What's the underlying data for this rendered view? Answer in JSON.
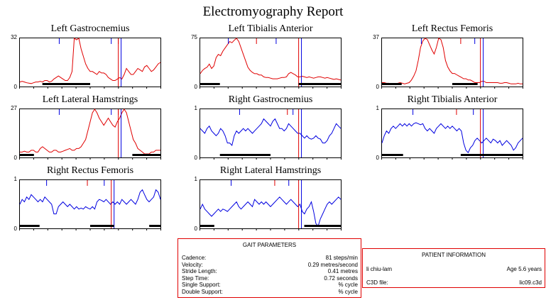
{
  "report_title": "Electromyography Report",
  "chart_data": [
    {
      "type": "line",
      "title": "Left Gastrocnemius",
      "ymax_label": "32",
      "ymin_label": "0",
      "color": "#e00000",
      "values": [
        3,
        3.5,
        3,
        2.5,
        2.2,
        2,
        2.5,
        3,
        3,
        3.5,
        3,
        4,
        4,
        3,
        3.5,
        5,
        6,
        7,
        6,
        5,
        4,
        4,
        6,
        10,
        32,
        31,
        32,
        25,
        20,
        15,
        12,
        10,
        10,
        9,
        8,
        10,
        9,
        9,
        8,
        6,
        5,
        4,
        4,
        5,
        6,
        5,
        8,
        12,
        10,
        8,
        8,
        10,
        12,
        11,
        10,
        13,
        14,
        12,
        10,
        11,
        13,
        15,
        16
      ],
      "markers": [
        {
          "color": "#0000e0",
          "pos": 0.28,
          "type": "tick"
        },
        {
          "color": "#0000e0",
          "pos": 0.65,
          "type": "tick"
        },
        {
          "color": "#e00000",
          "pos": 0.7,
          "type": "tick"
        },
        {
          "color": "#e00000",
          "pos": 0.7,
          "type": "full"
        },
        {
          "color": "#0000e0",
          "pos": 0.72,
          "type": "full"
        }
      ],
      "bars": [
        [
          0.16,
          0.5
        ]
      ]
    },
    {
      "type": "line",
      "title": "Left Tibialis Anterior",
      "ymax_label": "75",
      "ymin_label": "0",
      "color": "#e00000",
      "values": [
        20,
        25,
        28,
        30,
        35,
        28,
        32,
        45,
        50,
        48,
        55,
        60,
        65,
        70,
        68,
        72,
        75,
        70,
        60,
        50,
        40,
        30,
        25,
        22,
        20,
        20,
        18,
        18,
        15,
        14,
        14,
        13,
        12,
        12,
        12,
        13,
        14,
        14,
        15,
        20,
        22,
        20,
        18,
        15,
        15,
        16,
        15,
        14,
        15,
        14,
        13,
        14,
        15,
        15,
        14,
        13,
        14,
        13,
        12,
        11,
        12,
        11,
        10
      ],
      "markers": [
        {
          "color": "#0000e0",
          "pos": 0.2,
          "type": "tick"
        },
        {
          "color": "#e00000",
          "pos": 0.4,
          "type": "tick"
        },
        {
          "color": "#0000e0",
          "pos": 0.54,
          "type": "tick"
        },
        {
          "color": "#e00000",
          "pos": 0.7,
          "type": "full"
        },
        {
          "color": "#0000e0",
          "pos": 0.72,
          "type": "full"
        }
      ],
      "bars": [
        [
          0.0,
          0.14
        ],
        [
          0.7,
          1.0
        ]
      ]
    },
    {
      "type": "line",
      "title": "Left Rectus Femoris",
      "ymax_label": "37",
      "ymin_label": "0",
      "color": "#e00000",
      "values": [
        3,
        3,
        2.5,
        2.5,
        2,
        2,
        2,
        2.5,
        3,
        2.5,
        2,
        2.5,
        3,
        5,
        8,
        12,
        20,
        30,
        35,
        37,
        36,
        32,
        28,
        25,
        30,
        37,
        36,
        30,
        20,
        15,
        12,
        10,
        10,
        9,
        8,
        7,
        6,
        6,
        5,
        5,
        4,
        3,
        3,
        3,
        4,
        4,
        3,
        3,
        3,
        3,
        3,
        3,
        2.5,
        2.5,
        3,
        3,
        2.5,
        2,
        2,
        2,
        2.5,
        2,
        2
      ],
      "markers": [
        {
          "color": "#0000e0",
          "pos": 0.28,
          "type": "tick"
        },
        {
          "color": "#e00000",
          "pos": 0.56,
          "type": "tick"
        },
        {
          "color": "#0000e0",
          "pos": 0.66,
          "type": "tick"
        },
        {
          "color": "#e00000",
          "pos": 0.7,
          "type": "full"
        },
        {
          "color": "#0000e0",
          "pos": 0.72,
          "type": "full"
        }
      ],
      "bars": [
        [
          0.0,
          0.14
        ],
        [
          0.5,
          0.68
        ]
      ]
    },
    {
      "type": "line",
      "title": "Left Lateral Hamstrings",
      "ymax_label": "27",
      "ymin_label": "0",
      "color": "#e00000",
      "values": [
        3,
        3,
        3.5,
        3,
        3,
        4,
        4,
        3,
        3,
        5,
        6,
        5,
        4,
        3,
        3,
        4,
        4,
        3,
        3,
        3.5,
        4,
        4.5,
        5,
        4,
        4,
        5,
        5,
        6,
        8,
        10,
        15,
        20,
        25,
        27,
        25,
        22,
        20,
        18,
        20,
        22,
        20,
        18,
        17,
        20,
        22,
        25,
        27,
        25,
        20,
        15,
        10,
        8,
        5,
        4,
        3,
        2,
        2,
        2,
        3,
        3,
        4,
        4,
        4
      ],
      "markers": [
        {
          "color": "#0000e0",
          "pos": 0.28,
          "type": "tick"
        },
        {
          "color": "#0000e0",
          "pos": 0.65,
          "type": "tick"
        },
        {
          "color": "#e00000",
          "pos": 0.7,
          "type": "tick"
        },
        {
          "color": "#e00000",
          "pos": 0.7,
          "type": "full"
        },
        {
          "color": "#0000e0",
          "pos": 0.72,
          "type": "full"
        }
      ],
      "bars": [
        [
          0.0,
          0.1
        ],
        [
          0.8,
          1.0
        ]
      ]
    },
    {
      "type": "line",
      "title": "Right Gastrocnemius",
      "ymax_label": "1",
      "ymin_label": "0",
      "color": "#0000e0",
      "values": [
        0.6,
        0.55,
        0.5,
        0.6,
        0.65,
        0.55,
        0.5,
        0.45,
        0.5,
        0.6,
        0.55,
        0.45,
        0.3,
        0.3,
        0.25,
        0.45,
        0.55,
        0.5,
        0.55,
        0.6,
        0.55,
        0.6,
        0.55,
        0.5,
        0.55,
        0.6,
        0.65,
        0.7,
        0.8,
        0.75,
        0.7,
        0.65,
        0.75,
        0.8,
        0.7,
        0.6,
        0.6,
        0.55,
        0.6,
        0.7,
        0.65,
        0.6,
        0.55,
        0.5,
        0.5,
        0.45,
        0.4,
        0.45,
        0.4,
        0.38,
        0.4,
        0.45,
        0.4,
        0.38,
        0.3,
        0.3,
        0.35,
        0.45,
        0.5,
        0.6,
        0.7,
        0.65,
        0.6
      ],
      "markers": [
        {
          "color": "#0000e0",
          "pos": 0.28,
          "type": "tick"
        },
        {
          "color": "#e00000",
          "pos": 0.62,
          "type": "tick"
        },
        {
          "color": "#0000e0",
          "pos": 0.66,
          "type": "tick"
        },
        {
          "color": "#e00000",
          "pos": 0.7,
          "type": "full"
        },
        {
          "color": "#0000e0",
          "pos": 0.72,
          "type": "full"
        }
      ],
      "bars": [
        [
          0.14,
          0.5
        ]
      ]
    },
    {
      "type": "line",
      "title": "Right Tibialis Anterior",
      "ymax_label": "1",
      "ymin_label": "0",
      "color": "#0000e0",
      "values": [
        0.3,
        0.45,
        0.55,
        0.5,
        0.6,
        0.65,
        0.6,
        0.65,
        0.7,
        0.65,
        0.7,
        0.65,
        0.7,
        0.65,
        0.7,
        0.72,
        0.7,
        0.68,
        0.7,
        0.6,
        0.55,
        0.6,
        0.55,
        0.5,
        0.6,
        0.65,
        0.7,
        0.65,
        0.6,
        0.65,
        0.6,
        0.65,
        0.6,
        0.55,
        0.6,
        0.55,
        0.3,
        0.15,
        0.1,
        0.2,
        0.25,
        0.35,
        0.4,
        0.35,
        0.3,
        0.35,
        0.4,
        0.35,
        0.3,
        0.38,
        0.35,
        0.3,
        0.35,
        0.25,
        0.3,
        0.35,
        0.3,
        0.25,
        0.15,
        0.2,
        0.3,
        0.35,
        0.4
      ],
      "markers": [
        {
          "color": "#0000e0",
          "pos": 0.22,
          "type": "tick"
        },
        {
          "color": "#e00000",
          "pos": 0.53,
          "type": "tick"
        },
        {
          "color": "#0000e0",
          "pos": 0.65,
          "type": "tick"
        },
        {
          "color": "#e00000",
          "pos": 0.7,
          "type": "full"
        },
        {
          "color": "#0000e0",
          "pos": 0.72,
          "type": "full"
        }
      ],
      "bars": [
        [
          0.0,
          0.15
        ],
        [
          0.56,
          1.0
        ]
      ]
    },
    {
      "type": "line",
      "title": "Right Rectus Femoris",
      "ymax_label": "1",
      "ymin_label": "0",
      "color": "#0000e0",
      "values": [
        0.5,
        0.6,
        0.55,
        0.65,
        0.6,
        0.7,
        0.65,
        0.6,
        0.55,
        0.6,
        0.55,
        0.65,
        0.6,
        0.55,
        0.5,
        0.3,
        0.3,
        0.45,
        0.5,
        0.55,
        0.5,
        0.45,
        0.5,
        0.45,
        0.4,
        0.45,
        0.4,
        0.42,
        0.4,
        0.45,
        0.42,
        0.4,
        0.45,
        0.4,
        0.55,
        0.6,
        0.58,
        0.55,
        0.6,
        0.55,
        0.5,
        0.55,
        0.5,
        0.55,
        0.5,
        0.6,
        0.55,
        0.5,
        0.55,
        0.6,
        0.55,
        0.5,
        0.6,
        0.75,
        0.8,
        0.7,
        0.6,
        0.55,
        0.6,
        0.65,
        0.8,
        0.75,
        0.6
      ],
      "markers": [
        {
          "color": "#0000e0",
          "pos": 0.19,
          "type": "tick"
        },
        {
          "color": "#e00000",
          "pos": 0.48,
          "type": "tick"
        },
        {
          "color": "#0000e0",
          "pos": 0.6,
          "type": "tick"
        },
        {
          "color": "#e00000",
          "pos": 0.65,
          "type": "full"
        },
        {
          "color": "#0000e0",
          "pos": 0.67,
          "type": "full"
        }
      ],
      "bars": [
        [
          0.0,
          0.14
        ],
        [
          0.5,
          0.67
        ],
        [
          0.92,
          1.0
        ]
      ]
    },
    {
      "type": "line",
      "title": "Right Lateral Hamstrings",
      "ymax_label": "1",
      "ymin_label": "0",
      "color": "#0000e0",
      "values": [
        0.4,
        0.5,
        0.4,
        0.35,
        0.3,
        0.25,
        0.3,
        0.35,
        0.4,
        0.35,
        0.4,
        0.38,
        0.35,
        0.4,
        0.45,
        0.5,
        0.55,
        0.45,
        0.4,
        0.45,
        0.5,
        0.55,
        0.5,
        0.45,
        0.6,
        0.55,
        0.5,
        0.55,
        0.5,
        0.55,
        0.5,
        0.45,
        0.5,
        0.55,
        0.6,
        0.65,
        0.6,
        0.55,
        0.5,
        0.55,
        0.6,
        0.55,
        0.5,
        0.45,
        0.5,
        0.35,
        0.3,
        0.4,
        0.45,
        0.55,
        0.35,
        0.1,
        0.05,
        0.2,
        0.3,
        0.4,
        0.5,
        0.55,
        0.5,
        0.55,
        0.6,
        0.65,
        0.6
      ],
      "markers": [
        {
          "color": "#0000e0",
          "pos": 0.22,
          "type": "tick"
        },
        {
          "color": "#e00000",
          "pos": 0.53,
          "type": "tick"
        },
        {
          "color": "#0000e0",
          "pos": 0.63,
          "type": "tick"
        },
        {
          "color": "#e00000",
          "pos": 0.7,
          "type": "full"
        },
        {
          "color": "#0000e0",
          "pos": 0.72,
          "type": "full"
        }
      ],
      "bars": [
        [
          0.0,
          0.1
        ],
        [
          0.74,
          1.0
        ]
      ]
    }
  ],
  "gait": {
    "title": "GAIT PARAMETERS",
    "rows": [
      {
        "label": "Cadence:",
        "value": "81 steps/min"
      },
      {
        "label": "Velocity:",
        "value": "0.29 metres/second"
      },
      {
        "label": "Stride Length:",
        "value": "0.41 metres"
      },
      {
        "label": "Step Time:",
        "value": "0.72 seconds"
      },
      {
        "label": "Single Support:",
        "value": "% cycle"
      },
      {
        "label": "Double Support:",
        "value": "% cycle"
      }
    ]
  },
  "patient": {
    "title": "PATIENT INFORMATION",
    "name": "li chiu-lam",
    "age": "Age 5.6 years",
    "c3d_label": "C3D file:",
    "c3d_value": "lic09.c3d"
  }
}
